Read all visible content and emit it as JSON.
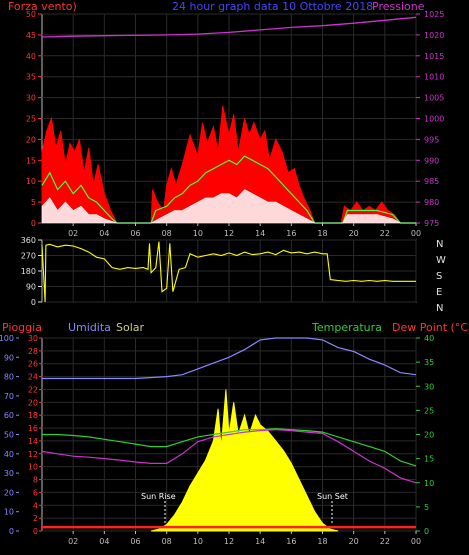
{
  "header": {
    "left": "Forza vento)",
    "center": "24 hour graph data  10 Ottobre 2018",
    "right": "Pressione"
  },
  "bottom_header": {
    "pioggia": "Pioggia",
    "umidita": "Umidita",
    "solar": "Solar",
    "temperatura": "Temperatura",
    "dewpoint": "Dew Point (°C)"
  },
  "compass": [
    "N",
    "W",
    "S",
    "E",
    "N"
  ],
  "sun": {
    "rise": "Sun Rise",
    "set": "Sun Set"
  },
  "colors": {
    "wind": "#ff0000",
    "gust": "#40ff40",
    "avg": "#ffffff",
    "pressure": "#cc33cc",
    "direction": "#ffff00",
    "humidity": "#8888ff",
    "temperature": "#33cc33",
    "dewpoint": "#cc33cc",
    "solar": "#ffff00",
    "rain": "#ff2222",
    "wind_axis": "#ff3333",
    "pressure_axis": "#cc33cc",
    "rain_axis": "#ff3333",
    "hum_axis": "#8888ff",
    "temp_axis": "#33cc33"
  },
  "chart_data": [
    {
      "type": "area",
      "name": "wind-pressure",
      "x_ticks": [
        "02",
        "04",
        "06",
        "08",
        "10",
        "12",
        "14",
        "16",
        "18",
        "20",
        "22",
        "00"
      ],
      "xlim": [
        0,
        24
      ],
      "wind_ticks": [
        0,
        5,
        10,
        15,
        20,
        25,
        30,
        35,
        40,
        45,
        50
      ],
      "wind_ylim": [
        0,
        50
      ],
      "pressure_ticks": [
        975,
        980,
        985,
        990,
        995,
        1000,
        1005,
        1010,
        1015,
        1020,
        1025
      ],
      "pressure_ylim": [
        975,
        1025
      ],
      "wind_max_envelope": [
        [
          0.0,
          17
        ],
        [
          0.3,
          22
        ],
        [
          0.6,
          25
        ],
        [
          0.9,
          18
        ],
        [
          1.2,
          22
        ],
        [
          1.5,
          14
        ],
        [
          1.8,
          19
        ],
        [
          2.1,
          17
        ],
        [
          2.4,
          20
        ],
        [
          2.7,
          12
        ],
        [
          3.0,
          18
        ],
        [
          3.3,
          9
        ],
        [
          3.6,
          14
        ],
        [
          4.0,
          7
        ],
        [
          4.4,
          3
        ],
        [
          4.8,
          0
        ],
        [
          6.8,
          0
        ],
        [
          7.0,
          0
        ],
        [
          7.1,
          8
        ],
        [
          7.4,
          5
        ],
        [
          7.8,
          3
        ],
        [
          8.0,
          9
        ],
        [
          8.3,
          13
        ],
        [
          8.6,
          9
        ],
        [
          9.0,
          14
        ],
        [
          9.5,
          21
        ],
        [
          10.0,
          16
        ],
        [
          10.3,
          24
        ],
        [
          10.6,
          19
        ],
        [
          11.0,
          23
        ],
        [
          11.3,
          17
        ],
        [
          11.6,
          28
        ],
        [
          12.0,
          21
        ],
        [
          12.3,
          26
        ],
        [
          12.6,
          17
        ],
        [
          13.0,
          25
        ],
        [
          13.3,
          21
        ],
        [
          13.6,
          24
        ],
        [
          14.0,
          20
        ],
        [
          14.3,
          22
        ],
        [
          14.6,
          15
        ],
        [
          15.0,
          20
        ],
        [
          15.4,
          17
        ],
        [
          15.8,
          12
        ],
        [
          16.2,
          13
        ],
        [
          16.5,
          9
        ],
        [
          16.8,
          6
        ],
        [
          17.2,
          3
        ],
        [
          17.5,
          0
        ],
        [
          19.2,
          0
        ],
        [
          19.4,
          4
        ],
        [
          19.8,
          3
        ],
        [
          20.2,
          5
        ],
        [
          20.6,
          3
        ],
        [
          21.0,
          4
        ],
        [
          21.4,
          3
        ],
        [
          21.8,
          5
        ],
        [
          22.2,
          3
        ],
        [
          22.6,
          2
        ],
        [
          23.0,
          0
        ],
        [
          24.0,
          0
        ]
      ],
      "wind_gust_line": [
        [
          0.0,
          9
        ],
        [
          0.5,
          12
        ],
        [
          1.0,
          8
        ],
        [
          1.5,
          10
        ],
        [
          2.0,
          7
        ],
        [
          2.5,
          9
        ],
        [
          3.0,
          6
        ],
        [
          3.5,
          5
        ],
        [
          4.0,
          3
        ],
        [
          4.5,
          1
        ],
        [
          4.8,
          0
        ],
        [
          7.0,
          0
        ],
        [
          7.3,
          3
        ],
        [
          8.0,
          4
        ],
        [
          8.5,
          6
        ],
        [
          9.0,
          7
        ],
        [
          9.5,
          9
        ],
        [
          10.0,
          10
        ],
        [
          10.5,
          12
        ],
        [
          11.0,
          13
        ],
        [
          11.5,
          14
        ],
        [
          12.0,
          15
        ],
        [
          12.5,
          14
        ],
        [
          13.0,
          16
        ],
        [
          13.5,
          15
        ],
        [
          14.0,
          14
        ],
        [
          14.5,
          13
        ],
        [
          15.0,
          11
        ],
        [
          15.5,
          9
        ],
        [
          16.0,
          7
        ],
        [
          16.5,
          5
        ],
        [
          17.0,
          3
        ],
        [
          17.5,
          0
        ],
        [
          19.3,
          0
        ],
        [
          19.6,
          3
        ],
        [
          20.5,
          3
        ],
        [
          21.5,
          3
        ],
        [
          22.5,
          2
        ],
        [
          23.0,
          0
        ],
        [
          24.0,
          0
        ]
      ],
      "wind_avg_line": [
        [
          0.0,
          4
        ],
        [
          0.5,
          6
        ],
        [
          1.0,
          3
        ],
        [
          1.5,
          5
        ],
        [
          2.0,
          3
        ],
        [
          2.5,
          4
        ],
        [
          3.0,
          2
        ],
        [
          3.5,
          2
        ],
        [
          4.0,
          1
        ],
        [
          4.8,
          0
        ],
        [
          7.0,
          0
        ],
        [
          7.5,
          1
        ],
        [
          8.0,
          2
        ],
        [
          8.5,
          3
        ],
        [
          9.0,
          3
        ],
        [
          9.5,
          4
        ],
        [
          10.0,
          5
        ],
        [
          10.5,
          6
        ],
        [
          11.0,
          6
        ],
        [
          11.5,
          7
        ],
        [
          12.0,
          7
        ],
        [
          12.5,
          6
        ],
        [
          13.0,
          8
        ],
        [
          13.5,
          7
        ],
        [
          14.0,
          6
        ],
        [
          14.5,
          5
        ],
        [
          15.0,
          5
        ],
        [
          15.5,
          4
        ],
        [
          16.0,
          3
        ],
        [
          16.5,
          2
        ],
        [
          17.0,
          1
        ],
        [
          17.5,
          0
        ],
        [
          19.3,
          0
        ],
        [
          19.6,
          2
        ],
        [
          20.5,
          2
        ],
        [
          21.5,
          2
        ],
        [
          22.5,
          1
        ],
        [
          23.0,
          0
        ],
        [
          24.0,
          0
        ]
      ],
      "pressure_line": [
        [
          0,
          1019.5
        ],
        [
          2,
          1019.7
        ],
        [
          4,
          1019.8
        ],
        [
          6,
          1019.9
        ],
        [
          8,
          1020.0
        ],
        [
          10,
          1020.2
        ],
        [
          12,
          1020.6
        ],
        [
          14,
          1021.2
        ],
        [
          16,
          1021.8
        ],
        [
          18,
          1022.2
        ],
        [
          20,
          1022.8
        ],
        [
          22,
          1023.5
        ],
        [
          24,
          1024.2
        ]
      ]
    },
    {
      "type": "line",
      "name": "wind-direction",
      "y_ticks": [
        0,
        90,
        180,
        270,
        360
      ],
      "ylim": [
        0,
        360
      ],
      "xlim": [
        0,
        24
      ],
      "direction_line": [
        [
          0.0,
          330
        ],
        [
          0.2,
          0
        ],
        [
          0.25,
          330
        ],
        [
          0.5,
          335
        ],
        [
          1.0,
          320
        ],
        [
          1.5,
          330
        ],
        [
          2.0,
          325
        ],
        [
          2.5,
          310
        ],
        [
          3.0,
          290
        ],
        [
          3.5,
          260
        ],
        [
          4.0,
          250
        ],
        [
          4.5,
          200
        ],
        [
          5.0,
          190
        ],
        [
          5.5,
          200
        ],
        [
          6.0,
          195
        ],
        [
          6.5,
          200
        ],
        [
          6.8,
          190
        ],
        [
          6.9,
          340
        ],
        [
          7.0,
          170
        ],
        [
          7.3,
          200
        ],
        [
          7.5,
          350
        ],
        [
          7.7,
          60
        ],
        [
          8.0,
          80
        ],
        [
          8.2,
          340
        ],
        [
          8.4,
          60
        ],
        [
          8.8,
          190
        ],
        [
          9.2,
          200
        ],
        [
          9.5,
          280
        ],
        [
          10.0,
          260
        ],
        [
          10.5,
          270
        ],
        [
          11.0,
          280
        ],
        [
          11.5,
          270
        ],
        [
          12.0,
          285
        ],
        [
          12.5,
          270
        ],
        [
          13.0,
          290
        ],
        [
          13.5,
          275
        ],
        [
          14.0,
          280
        ],
        [
          14.5,
          290
        ],
        [
          15.0,
          275
        ],
        [
          15.5,
          300
        ],
        [
          16.0,
          285
        ],
        [
          16.5,
          290
        ],
        [
          17.0,
          280
        ],
        [
          17.5,
          290
        ],
        [
          18.0,
          280
        ],
        [
          18.3,
          280
        ],
        [
          18.5,
          130
        ],
        [
          19.0,
          125
        ],
        [
          19.5,
          120
        ],
        [
          20.0,
          125
        ],
        [
          20.5,
          120
        ],
        [
          21.0,
          125
        ],
        [
          21.5,
          120
        ],
        [
          22.0,
          125
        ],
        [
          22.5,
          120
        ],
        [
          23.0,
          120
        ],
        [
          23.5,
          120
        ],
        [
          24.0,
          120
        ]
      ]
    },
    {
      "type": "area",
      "name": "rain-humidity-temperature-solar",
      "xlim": [
        0,
        24
      ],
      "rain_ticks": [
        0,
        2,
        4,
        6,
        8,
        10,
        12,
        14,
        16,
        18,
        20,
        22,
        24,
        26,
        28,
        30
      ],
      "rain_ylim": [
        0,
        30
      ],
      "hum_ticks": [
        0,
        10,
        20,
        30,
        40,
        50,
        60,
        70,
        80,
        90,
        100
      ],
      "hum_ylim": [
        0,
        100
      ],
      "temp_ticks": [
        0,
        5,
        10,
        15,
        20,
        25,
        30,
        35,
        40
      ],
      "temp_ylim": [
        0,
        40
      ],
      "humidity_line": [
        [
          0,
          79
        ],
        [
          2,
          79
        ],
        [
          4,
          79
        ],
        [
          6,
          79
        ],
        [
          8,
          80
        ],
        [
          9,
          81
        ],
        [
          10,
          84
        ],
        [
          11,
          87
        ],
        [
          12,
          90
        ],
        [
          13,
          94
        ],
        [
          14,
          99
        ],
        [
          15,
          100
        ],
        [
          16,
          100
        ],
        [
          17,
          100
        ],
        [
          18,
          99
        ],
        [
          19,
          95
        ],
        [
          20,
          93
        ],
        [
          21,
          89
        ],
        [
          22,
          86
        ],
        [
          23,
          82
        ],
        [
          24,
          81
        ]
      ],
      "temperature_line": [
        [
          0,
          20
        ],
        [
          1,
          20
        ],
        [
          2,
          19.8
        ],
        [
          3,
          19.5
        ],
        [
          4,
          19
        ],
        [
          5,
          18.5
        ],
        [
          6,
          18
        ],
        [
          7,
          17.5
        ],
        [
          8,
          17.5
        ],
        [
          9,
          18.5
        ],
        [
          10,
          19.5
        ],
        [
          11,
          20
        ],
        [
          12,
          20.5
        ],
        [
          13,
          21
        ],
        [
          14,
          21
        ],
        [
          15,
          21.2
        ],
        [
          16,
          21
        ],
        [
          17,
          20.8
        ],
        [
          18,
          20.5
        ],
        [
          19,
          19.5
        ],
        [
          20,
          18.5
        ],
        [
          21,
          17.5
        ],
        [
          22,
          16.5
        ],
        [
          23,
          14.5
        ],
        [
          24,
          13.5
        ]
      ],
      "dewpoint_line": [
        [
          0,
          16.5
        ],
        [
          1,
          16
        ],
        [
          2,
          15.5
        ],
        [
          3,
          15.3
        ],
        [
          4,
          15
        ],
        [
          5,
          14.7
        ],
        [
          6,
          14.3
        ],
        [
          7,
          14
        ],
        [
          8,
          14
        ],
        [
          9,
          16
        ],
        [
          10,
          18.5
        ],
        [
          11,
          19.5
        ],
        [
          12,
          20
        ],
        [
          13,
          20.5
        ],
        [
          14,
          20.8
        ],
        [
          15,
          21
        ],
        [
          16,
          20.8
        ],
        [
          17,
          20.5
        ],
        [
          18,
          20.2
        ],
        [
          19,
          18.5
        ],
        [
          20,
          16.5
        ],
        [
          21,
          14.5
        ],
        [
          22,
          13
        ],
        [
          23,
          11
        ],
        [
          24,
          10
        ]
      ],
      "solar_envelope": [
        [
          7.0,
          0
        ],
        [
          7.5,
          0.3
        ],
        [
          8.0,
          1
        ],
        [
          8.5,
          2.5
        ],
        [
          9.0,
          4.5
        ],
        [
          9.5,
          7
        ],
        [
          10.0,
          9
        ],
        [
          10.5,
          11
        ],
        [
          11.0,
          14
        ],
        [
          11.3,
          19
        ],
        [
          11.5,
          13
        ],
        [
          11.8,
          22
        ],
        [
          12.0,
          15
        ],
        [
          12.3,
          20
        ],
        [
          12.6,
          15
        ],
        [
          13.0,
          18
        ],
        [
          13.3,
          15
        ],
        [
          13.7,
          18
        ],
        [
          14.0,
          16.5
        ],
        [
          14.5,
          15.5
        ],
        [
          15.0,
          14
        ],
        [
          15.5,
          12.5
        ],
        [
          16.0,
          10.5
        ],
        [
          16.5,
          8
        ],
        [
          17.0,
          5.5
        ],
        [
          17.5,
          3
        ],
        [
          18.0,
          1.2
        ],
        [
          18.5,
          0.3
        ],
        [
          19.0,
          0
        ]
      ],
      "rain_line": [
        [
          0,
          0.6
        ],
        [
          24,
          0.6
        ]
      ]
    }
  ]
}
